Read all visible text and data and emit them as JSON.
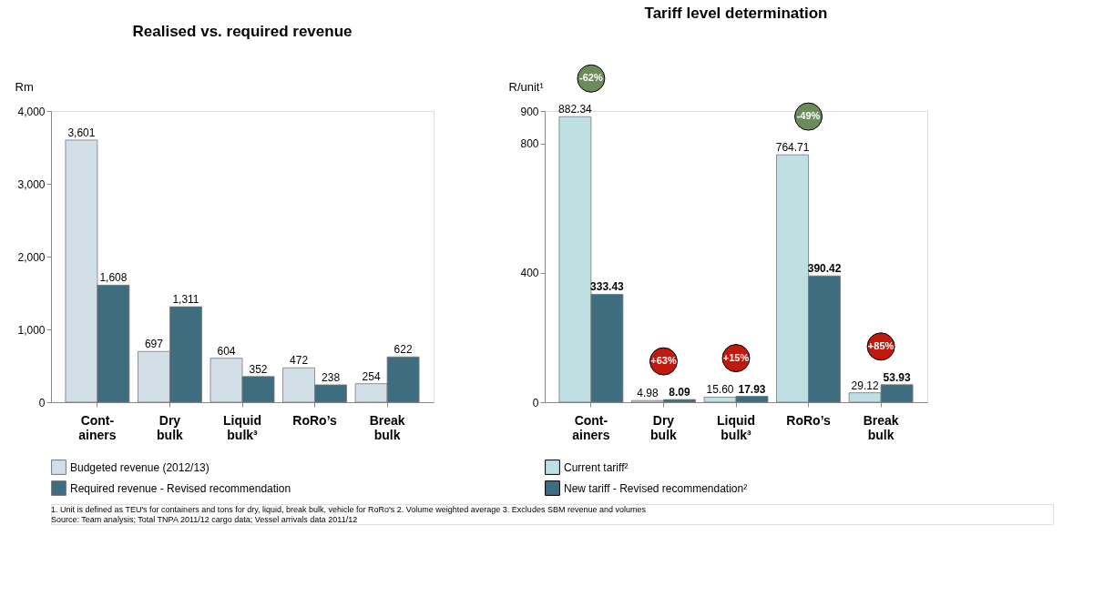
{
  "chart_data": [
    {
      "type": "bar",
      "title": "Realised vs. required revenue",
      "ylabel": "Rm",
      "categories": [
        "Cont-\nainers",
        "Dry\nbulk",
        "Liquid\nbulk³",
        "RoRo’s",
        "Break\nbulk"
      ],
      "series": [
        {
          "name": "Budgeted revenue (2012/13)",
          "color": "#d3dfe6",
          "values": [
            3601,
            697,
            604,
            472,
            254
          ]
        },
        {
          "name": "Required revenue - Revised recommendation",
          "color": "#3f6d80",
          "values": [
            1608,
            1311,
            352,
            238,
            622
          ]
        }
      ],
      "ylim": [
        0,
        4000
      ],
      "yticks": [
        {
          "value": 0,
          "label": "0"
        },
        {
          "value": 1000,
          "label": "1,000"
        },
        {
          "value": 2000,
          "label": "2,000"
        },
        {
          "value": 3000,
          "label": "3,000"
        },
        {
          "value": 4000,
          "label": "4,000"
        }
      ],
      "value_labels": [
        [
          "3,601",
          "697",
          "604",
          "472",
          "254"
        ],
        [
          "1,608",
          "1,311",
          "352",
          "238",
          "622"
        ]
      ],
      "legend": "bottom",
      "annotations": [
        "1. Unit is defined as TEU's for containers and tons for dry, liquid, break bulk, vehicle for RoRo's  2. Volume weighted average  3. Excludes SBM revenue and volumes",
        "Source: Team analysis; Total TNPA 2011/12 cargo data; Vessel arrivals data 2011/12"
      ]
    },
    {
      "type": "bar",
      "title": "Tariff level determination",
      "ylabel": "R/unit¹",
      "categories": [
        "Cont-\nainers",
        "Dry\nbulk",
        "Liquid\nbulk³",
        "RoRo’s",
        "Break\nbulk"
      ],
      "series": [
        {
          "name": "Current tariff²",
          "color": "#bfe0e3",
          "values": [
            882.34,
            4.98,
            15.6,
            764.71,
            29.12
          ]
        },
        {
          "name": "New tariff - Revised recommendation²",
          "color": "#3f6d80",
          "values": [
            333.43,
            8.09,
            17.93,
            390.42,
            53.93
          ]
        }
      ],
      "ylim": [
        0,
        900
      ],
      "yticks": [
        0,
        400,
        800,
        900
      ],
      "value_labels": [
        [
          "882.34",
          "4.98",
          "15.60",
          "764.71",
          "29.12"
        ],
        [
          "333.43",
          "8.09",
          "17.93",
          "390.42",
          "53.93"
        ]
      ],
      "legend": "bottom",
      "annotations": [
        "-62%",
        "+63%",
        "+15%",
        "-49%",
        "+85%"
      ]
    }
  ]
}
